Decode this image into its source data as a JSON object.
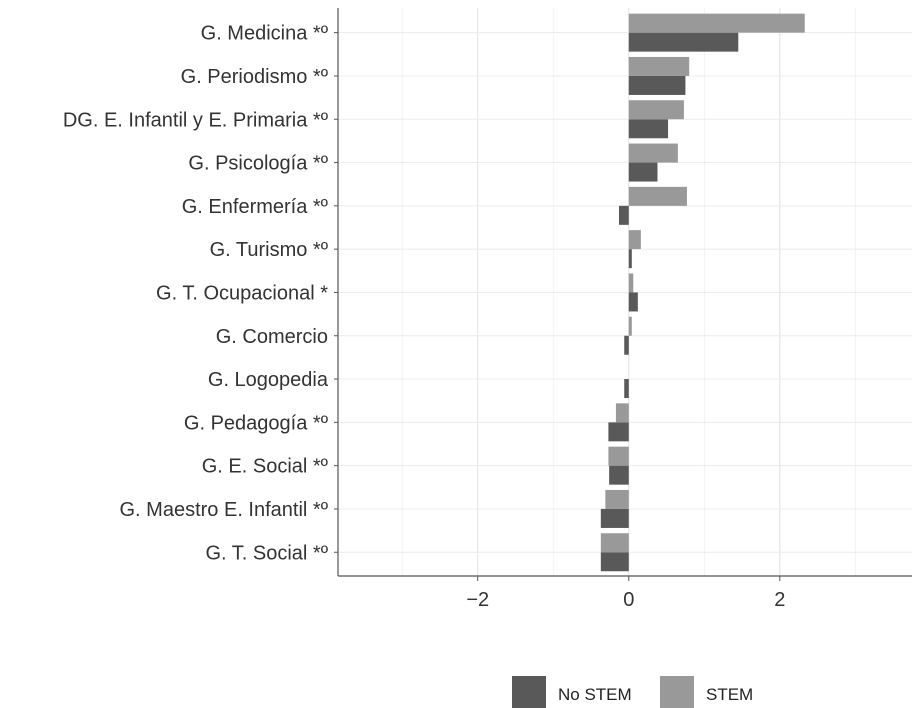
{
  "chart_data": {
    "type": "bar",
    "orientation": "horizontal",
    "title": "",
    "xlabel": "",
    "ylabel": "",
    "xlim": [
      -3.85,
      3.75
    ],
    "x_ticks": [
      -2,
      0,
      2
    ],
    "x_tick_labels": [
      "−2",
      "0",
      "2"
    ],
    "grid": true,
    "legend_position": "bottom",
    "categories": [
      "G. Medicina *º",
      "G. Periodismo *º",
      "DG. E. Infantil y E. Primaria *º",
      "G. Psicología *º",
      "G. Enfermería *º",
      "G. Turismo *º",
      "G. T. Ocupacional *",
      "G. Comercio",
      "G. Logopedia",
      "G. Pedagogía *º",
      "G. E. Social *º",
      "G. Maestro E. Infantil *º",
      "G. T. Social *º"
    ],
    "series": [
      {
        "name": "No STEM",
        "color": "#595959",
        "values": [
          1.45,
          0.75,
          0.52,
          0.38,
          -0.13,
          0.04,
          0.12,
          -0.06,
          -0.06,
          -0.27,
          -0.26,
          -0.37,
          -0.37
        ]
      },
      {
        "name": "STEM",
        "color": "#999999",
        "values": [
          2.33,
          0.8,
          0.73,
          0.65,
          0.77,
          0.16,
          0.06,
          0.04,
          0.0,
          -0.17,
          -0.27,
          -0.31,
          -0.37
        ]
      }
    ]
  }
}
